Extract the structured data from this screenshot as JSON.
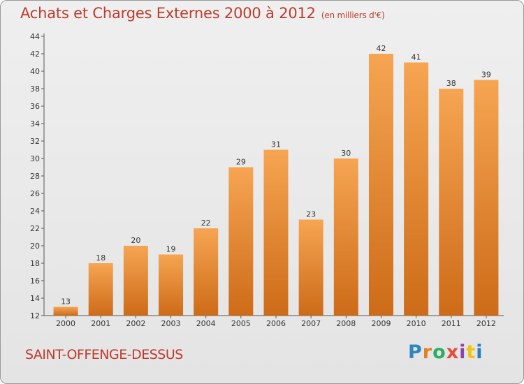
{
  "header": {
    "title": "Achats et Charges Externes 2000 à 2012",
    "unit": "(en milliers d'€)"
  },
  "footer": {
    "place": "SAINT-OFFENGE-DESSUS",
    "brand": "Proxiti"
  },
  "colors": {
    "bar_top": "#f6a552",
    "bar_bottom": "#cd6b18",
    "title": "#c0392b",
    "axis": "#555555"
  },
  "chart_data": {
    "type": "bar",
    "title": "Achats et Charges Externes 2000 à 2012",
    "subtitle": "(en milliers d'€)",
    "xlabel": "",
    "ylabel": "",
    "categories": [
      "2000",
      "2001",
      "2002",
      "2003",
      "2004",
      "2005",
      "2006",
      "2007",
      "2008",
      "2009",
      "2010",
      "2011",
      "2012"
    ],
    "values": [
      13,
      18,
      20,
      19,
      22,
      29,
      31,
      23,
      30,
      42,
      41,
      38,
      39
    ],
    "ylim": [
      12,
      44
    ],
    "yticks": [
      12,
      14,
      16,
      18,
      20,
      22,
      24,
      26,
      28,
      30,
      32,
      34,
      36,
      38,
      40,
      42,
      44
    ],
    "grid": false,
    "legend": "none"
  }
}
